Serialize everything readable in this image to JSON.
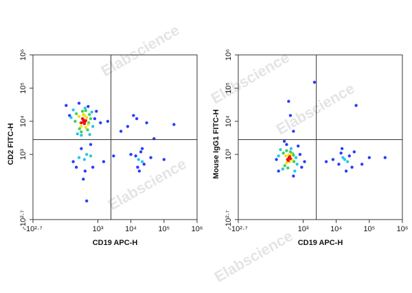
{
  "chart_data": [
    {
      "type": "scatter",
      "x_label": "CD19 APC-H",
      "y_label": "CD2 FITC-H",
      "scale": "biexponential",
      "xlim": [
        -501,
        1000000
      ],
      "ylim": [
        -501,
        1000000
      ],
      "xticks": [
        {
          "value": -501,
          "label": "-10²·⁷"
        },
        {
          "value": 1000,
          "label": "10³"
        },
        {
          "value": 10000,
          "label": "10⁴"
        },
        {
          "value": 100000,
          "label": "10⁵"
        },
        {
          "value": 1000000,
          "label": "10⁶"
        }
      ],
      "yticks": [
        {
          "value": -501,
          "label": "-10²·⁷"
        },
        {
          "value": 1000,
          "label": "10³"
        },
        {
          "value": 10000,
          "label": "10⁴"
        },
        {
          "value": 100000,
          "label": "10⁵"
        },
        {
          "value": 1000000,
          "label": "10⁶"
        }
      ],
      "gates": {
        "x": 2500,
        "y": 2800
      },
      "series": [
        {
          "color": "#2a3cff",
          "x": [
            100,
            800,
            1200,
            2000,
            60,
            250,
            500,
            900,
            300,
            600,
            150,
            700,
            400,
            5000,
            8000,
            15000,
            30000,
            12000,
            20000,
            25000,
            18000,
            40000,
            100000,
            3000,
            1500,
            10000,
            50000,
            200000,
            16000,
            22000,
            14000,
            350,
            450,
            200
          ],
          "y": [
            15000,
            12000,
            9000,
            10000,
            30000,
            35000,
            28000,
            20000,
            1500,
            2000,
            600,
            400,
            300,
            5000,
            7000,
            12000,
            9000,
            15000,
            1200,
            500,
            300,
            800,
            700,
            900,
            600,
            1000,
            3000,
            8000,
            400,
            1500,
            900,
            150,
            -100,
            400
          ]
        },
        {
          "color": "#25c8e8",
          "x": [
            150,
            650,
            220,
            700,
            400,
            120,
            560,
            300,
            450,
            250,
            380,
            600,
            17000,
            22000
          ],
          "y": [
            22000,
            19000,
            4200,
            7000,
            25000,
            13000,
            4000,
            3800,
            1000,
            800,
            700,
            900,
            700,
            600
          ]
        },
        {
          "color": "#3fd05a",
          "x": [
            200,
            550,
            260,
            480,
            330,
            600,
            180,
            420,
            300,
            520
          ],
          "y": [
            17000,
            16000,
            6000,
            5500,
            20000,
            12000,
            10000,
            21000,
            4800,
            9000
          ]
        },
        {
          "color": "#f2e01a",
          "x": [
            250,
            450,
            300,
            500,
            380,
            280,
            420,
            350
          ],
          "y": [
            14000,
            13000,
            7000,
            8000,
            15000,
            9000,
            6500,
            16000
          ]
        },
        {
          "color": "#e8141b",
          "x": [
            300,
            350,
            400,
            330,
            380,
            420,
            360
          ],
          "y": [
            9000,
            11000,
            10000,
            12000,
            8500,
            10500,
            9500
          ]
        }
      ]
    },
    {
      "type": "scatter",
      "x_label": "CD19 APC-H",
      "y_label": "Mouse IgG1 FITC-H",
      "scale": "biexponential",
      "xlim": [
        -501,
        1000000
      ],
      "ylim": [
        -501,
        1000000
      ],
      "xticks": [
        {
          "value": -501,
          "label": "-10²·⁷"
        },
        {
          "value": 1000,
          "label": "10³"
        },
        {
          "value": 10000,
          "label": "10⁴"
        },
        {
          "value": 100000,
          "label": "10⁵"
        },
        {
          "value": 1000000,
          "label": "10⁶"
        }
      ],
      "yticks": [
        {
          "value": -501,
          "label": "-10²·⁷"
        },
        {
          "value": 1000,
          "label": "10³"
        },
        {
          "value": 10000,
          "label": "10⁴"
        },
        {
          "value": 100000,
          "label": "10⁵"
        },
        {
          "value": 1000000,
          "label": "10⁶"
        }
      ],
      "gates": {
        "x": 2500,
        "y": 2800
      },
      "series": [
        {
          "color": "#2a3cff",
          "x": [
            120,
            800,
            1100,
            300,
            700,
            500,
            150,
            250,
            900,
            12000,
            25000,
            30000,
            14000,
            20000,
            8000,
            5000,
            60000,
            300000,
            35000,
            100000,
            400,
            350,
            500,
            15000,
            2200,
            40000
          ],
          "y": [
            700,
            1000,
            600,
            2000,
            1800,
            200,
            300,
            2500,
            400,
            500,
            900,
            400,
            1100,
            300,
            700,
            600,
            500,
            800,
            1200,
            800,
            15000,
            40000,
            5000,
            1500,
            150000,
            30000
          ]
        },
        {
          "color": "#25c8e8",
          "x": [
            180,
            600,
            220,
            650,
            420,
            150,
            550,
            18000,
            22000,
            16000
          ],
          "y": [
            1400,
            800,
            350,
            500,
            1500,
            900,
            300,
            700,
            600,
            800
          ]
        },
        {
          "color": "#3fd05a",
          "x": [
            230,
            500,
            260,
            520,
            400,
            330,
            470,
            300
          ],
          "y": [
            1100,
            950,
            450,
            600,
            1200,
            380,
            1050,
            1300
          ]
        },
        {
          "color": "#f2e01a",
          "x": [
            280,
            450,
            300,
            420,
            380,
            350
          ],
          "y": [
            900,
            700,
            550,
            1000,
            600,
            950
          ]
        },
        {
          "color": "#e8141b",
          "x": [
            320,
            360,
            400,
            340,
            380
          ],
          "y": [
            700,
            800,
            750,
            650,
            850
          ]
        }
      ]
    }
  ],
  "watermarks": [
    "Elabscience",
    "Elabscience",
    "Elabscience",
    "Elabscience",
    "Elabscience"
  ]
}
